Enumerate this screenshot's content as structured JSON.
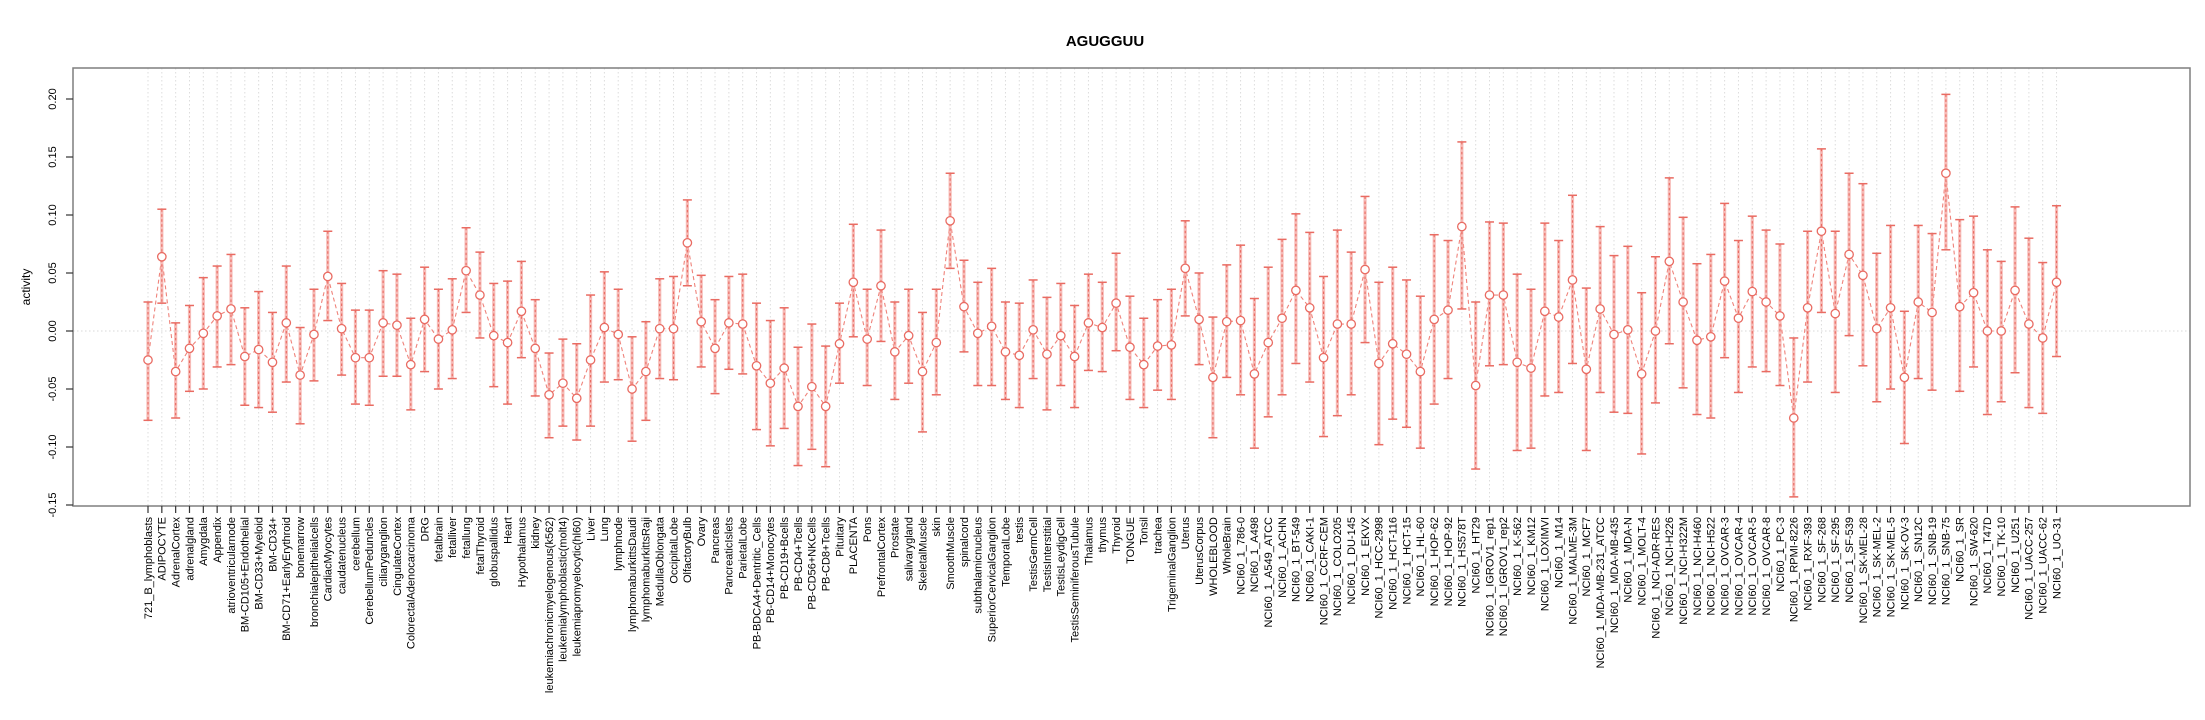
{
  "chart_data": {
    "type": "scatter",
    "subtype": "points-with-error-bars",
    "title": "AGUGGUU",
    "xlabel": "",
    "ylabel": "activity",
    "ylim": [
      -0.15,
      0.22
    ],
    "yticks": [
      "0.20",
      "0.15",
      "0.10",
      "0.05",
      "0.00",
      "-0.05",
      "-0.10",
      "-0.15"
    ],
    "ytick_values": [
      0.2,
      0.15,
      0.1,
      0.05,
      0.0,
      -0.05,
      -0.1,
      -0.15
    ],
    "grid": "vertical dotted gridline per category, dotted horizontal line at 0",
    "legend_position": "none",
    "colors": {
      "point": "#e96b62",
      "bar_dash": "#e96b62",
      "bar_light": "#f6aca7",
      "connector": "#ef837b",
      "grid": "#dcdcdc",
      "zero_line": "#d8d8d8",
      "box": "#7f7f7f",
      "tick": "#333333",
      "text": "#000000"
    },
    "categories": [
      "721_B_lymphoblasts",
      "ADIPOCYTE",
      "AdrenalCortex",
      "adrenalgland",
      "Amygdala",
      "Appendix",
      "atrioventricularnode",
      "BM-CD105+Endothelial",
      "BM-CD33+Myeloid",
      "BM-CD34+",
      "BM-CD71+EarlyErythroid",
      "bonemarrow",
      "bronchialepithelialcells",
      "CardiacMyocytes",
      "caudatenucleus",
      "cerebellum",
      "CerebellumPeduncles",
      "ciliaryganglion",
      "CingulateCortex",
      "ColorectalAdenocarcinoma",
      "DRG",
      "fetalbrain",
      "fetalliver",
      "fetallung",
      "fetalThyroid",
      "globuspallidus",
      "Heart",
      "Hypothalamus",
      "kidney",
      "leukemiachronicmyelogenous(k562)",
      "leukemialymphoblastic(molt4)",
      "leukemiapromyelocytic(hl60)",
      "Liver",
      "Lung",
      "lymphnode",
      "lymphomaburkittsDaudi",
      "lymphomaburkittsRaji",
      "MedullaOblongata",
      "OccipitalLobe",
      "OlfactoryBulb",
      "Ovary",
      "Pancreas",
      "PancreaticIslets",
      "ParietalLobe",
      "PB-BDCA4+Dentritic_Cells",
      "PB-CD14+Monocytes",
      "PB-CD19+Bcells",
      "PB-CD4+Tcells",
      "PB-CD56+NKCells",
      "PB-CD8+Tcells",
      "Pituitary",
      "PLACENTA",
      "Pons",
      "PrefrontalCortex",
      "Prostate",
      "salivarygland",
      "SkeletalMuscle",
      "skin",
      "SmoothMuscle",
      "spinalcord",
      "subthalamicnucleus",
      "SuperiorCervicalGanglion",
      "TemporalLobe",
      "testis",
      "TestisGermCell",
      "TestisInterstitial",
      "TestisLeydigCell",
      "TestisSeminiferousTubule",
      "Thalamus",
      "thymus",
      "Thyroid",
      "TONGUE",
      "Tonsil",
      "trachea",
      "TrigeminalGanglion",
      "Uterus",
      "UterusCorpus",
      "WHOLEBLOOD",
      "WholeBrain",
      "NCI60_1_786-0",
      "NCI60_1_A498",
      "NCI60_1_A549_ATCC",
      "NCI60_1_ACHN",
      "NCI60_1_BT-549",
      "NCI60_1_CAKI-1",
      "NCI60_1_CCRF-CEM",
      "NCI60_1_COLO205",
      "NCI60_1_DU-145",
      "NCI60_1_EKVX",
      "NCI60_1_HCC-2998",
      "NCI60_1_HCT-116",
      "NCI60_1_HCT-15",
      "NCI60_1_HL-60",
      "NCI60_1_HOP-62",
      "NCI60_1_HOP-92",
      "NCI60_1_HS578T",
      "NCI60_1_HT29",
      "NCI60_1_IGROV1_rep1",
      "NCI60_1_IGROV1_rep2",
      "NCI60_1_K-562",
      "NCI60_1_KM12",
      "NCI60_1_LOXIMVI",
      "NCI60_1_M14",
      "NCI60_1_MALME-3M",
      "NCI60_1_MCF7",
      "NCI60_1_MDA-MB-231_ATCC",
      "NCI60_1_MDA-MB-435",
      "NCI60_1_MDA-N",
      "NCI60_1_MOLT-4",
      "NCI60_1_NCI-ADR-RES",
      "NCI60_1_NCI-H226",
      "NCI60_1_NCI-H322M",
      "NCI60_1_NCI-H460",
      "NCI60_1_NCI-H522",
      "NCI60_1_OVCAR-3",
      "NCI60_1_OVCAR-4",
      "NCI60_1_OVCAR-5",
      "NCI60_1_OVCAR-8",
      "NCI60_1_PC-3",
      "NCI60_1_RPMI-8226",
      "NCI60_1_RXF-393",
      "NCI60_1_SF-268",
      "NCI60_1_SF-295",
      "NCI60_1_SF-539",
      "NCI60_1_SK-MEL-28",
      "NCI60_1_SK-MEL-2",
      "NCI60_1_SK-MEL-5",
      "NCI60_1_SK-OV-3",
      "NCI60_1_SN12C",
      "NCI60_1_SNB-19",
      "NCI60_1_SNB-75",
      "NCI60_1_SR",
      "NCI60_1_SW-620",
      "NCI60_1_T47D",
      "NCI60_1_TK-10",
      "NCI60_1_U251",
      "NCI60_1_UACC-257",
      "NCI60_1_UACC-62",
      "NCI60_1_UO-31"
    ],
    "series": [
      {
        "name": "activity",
        "means": [
          -0.025,
          0.064,
          -0.035,
          -0.015,
          -0.002,
          0.013,
          0.019,
          -0.022,
          -0.016,
          -0.027,
          0.007,
          -0.038,
          -0.003,
          0.047,
          0.002,
          -0.023,
          -0.023,
          0.007,
          0.005,
          -0.029,
          0.01,
          -0.007,
          0.001,
          0.052,
          0.031,
          -0.004,
          -0.01,
          0.017,
          -0.015,
          -0.055,
          -0.045,
          -0.058,
          -0.025,
          0.003,
          -0.003,
          -0.05,
          -0.035,
          0.002,
          0.002,
          0.076,
          0.008,
          -0.015,
          0.007,
          0.006,
          -0.03,
          -0.045,
          -0.032,
          -0.065,
          -0.048,
          -0.065,
          -0.011,
          0.042,
          -0.007,
          0.039,
          -0.018,
          -0.004,
          -0.035,
          -0.01,
          0.095,
          0.021,
          -0.002,
          0.004,
          -0.018,
          -0.021,
          0.001,
          -0.02,
          -0.004,
          -0.022,
          0.007,
          0.003,
          0.024,
          -0.014,
          -0.029,
          -0.013,
          -0.012,
          0.054,
          0.01,
          -0.04,
          0.008,
          0.009,
          -0.037,
          -0.01,
          0.011,
          0.035,
          0.02,
          -0.023,
          0.006,
          0.006,
          0.053,
          -0.028,
          -0.011,
          -0.02,
          -0.035,
          0.01,
          0.018,
          0.09,
          -0.047,
          0.031,
          0.031,
          -0.027,
          -0.032,
          0.017,
          0.012,
          0.044,
          -0.033,
          0.019,
          -0.003,
          0.001,
          -0.037,
          0.0,
          0.06,
          0.025,
          -0.008,
          -0.005,
          0.043,
          0.011,
          0.034,
          0.025,
          0.013,
          -0.075,
          0.02,
          0.086,
          0.015,
          0.066,
          0.048,
          0.002,
          0.02,
          -0.04,
          0.025,
          0.016,
          0.136,
          0.021,
          0.033,
          0.0,
          0.0,
          0.035,
          0.006,
          -0.006,
          0.042
        ],
        "lower": [
          -0.077,
          0.024,
          -0.075,
          -0.052,
          -0.05,
          -0.031,
          -0.029,
          -0.064,
          -0.066,
          -0.07,
          -0.044,
          -0.08,
          -0.043,
          0.009,
          -0.038,
          -0.063,
          -0.064,
          -0.039,
          -0.039,
          -0.068,
          -0.035,
          -0.05,
          -0.041,
          0.016,
          -0.006,
          -0.048,
          -0.063,
          -0.023,
          -0.056,
          -0.092,
          -0.082,
          -0.094,
          -0.082,
          -0.044,
          -0.042,
          -0.095,
          -0.077,
          -0.041,
          -0.042,
          0.039,
          -0.031,
          -0.054,
          -0.033,
          -0.037,
          -0.085,
          -0.099,
          -0.084,
          -0.116,
          -0.102,
          -0.117,
          -0.045,
          -0.005,
          -0.047,
          -0.009,
          -0.059,
          -0.045,
          -0.087,
          -0.055,
          0.054,
          -0.018,
          -0.047,
          -0.047,
          -0.059,
          -0.066,
          -0.041,
          -0.068,
          -0.047,
          -0.066,
          -0.034,
          -0.035,
          -0.017,
          -0.059,
          -0.066,
          -0.051,
          -0.059,
          0.013,
          -0.029,
          -0.092,
          -0.04,
          -0.055,
          -0.101,
          -0.074,
          -0.055,
          -0.028,
          -0.044,
          -0.091,
          -0.073,
          -0.055,
          -0.01,
          -0.098,
          -0.076,
          -0.083,
          -0.101,
          -0.063,
          -0.041,
          0.019,
          -0.119,
          -0.03,
          -0.029,
          -0.103,
          -0.101,
          -0.056,
          -0.053,
          -0.028,
          -0.103,
          -0.053,
          -0.07,
          -0.071,
          -0.106,
          -0.062,
          -0.011,
          -0.049,
          -0.072,
          -0.075,
          -0.023,
          -0.053,
          -0.031,
          -0.035,
          -0.047,
          -0.143,
          -0.044,
          0.016,
          -0.053,
          -0.004,
          -0.03,
          -0.061,
          -0.05,
          -0.097,
          -0.041,
          -0.051,
          0.07,
          -0.052,
          -0.031,
          -0.072,
          -0.061,
          -0.036,
          -0.066,
          -0.071,
          -0.022
        ],
        "upper": [
          0.025,
          0.105,
          0.007,
          0.022,
          0.046,
          0.056,
          0.066,
          0.02,
          0.034,
          0.016,
          0.056,
          0.003,
          0.036,
          0.086,
          0.041,
          0.018,
          0.018,
          0.052,
          0.049,
          0.011,
          0.055,
          0.036,
          0.045,
          0.089,
          0.068,
          0.041,
          0.043,
          0.06,
          0.027,
          -0.019,
          -0.007,
          -0.011,
          0.031,
          0.051,
          0.036,
          -0.005,
          0.008,
          0.045,
          0.047,
          0.113,
          0.048,
          0.027,
          0.047,
          0.049,
          0.024,
          0.009,
          0.02,
          -0.014,
          0.006,
          -0.013,
          0.024,
          0.092,
          0.036,
          0.087,
          0.025,
          0.036,
          0.016,
          0.036,
          0.136,
          0.061,
          0.042,
          0.054,
          0.025,
          0.024,
          0.044,
          0.029,
          0.041,
          0.022,
          0.049,
          0.042,
          0.067,
          0.03,
          0.011,
          0.027,
          0.036,
          0.095,
          0.05,
          0.012,
          0.057,
          0.074,
          0.028,
          0.055,
          0.079,
          0.101,
          0.085,
          0.047,
          0.087,
          0.068,
          0.116,
          0.042,
          0.055,
          0.044,
          0.03,
          0.083,
          0.078,
          0.163,
          0.025,
          0.094,
          0.093,
          0.049,
          0.036,
          0.093,
          0.078,
          0.117,
          0.037,
          0.09,
          0.065,
          0.073,
          0.033,
          0.064,
          0.132,
          0.098,
          0.058,
          0.066,
          0.11,
          0.078,
          0.099,
          0.087,
          0.075,
          -0.006,
          0.086,
          0.157,
          0.086,
          0.136,
          0.127,
          0.067,
          0.091,
          0.017,
          0.091,
          0.084,
          0.204,
          0.096,
          0.099,
          0.07,
          0.06,
          0.107,
          0.08,
          0.059,
          0.108
        ]
      }
    ]
  },
  "layout_note": "static R-style plot; no interactive controls visible"
}
